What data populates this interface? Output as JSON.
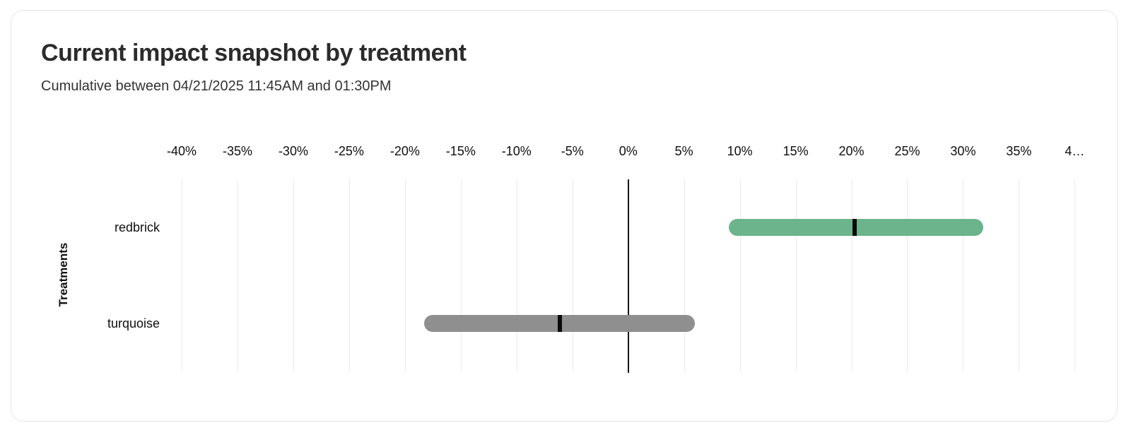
{
  "card": {
    "title": "Current impact snapshot by treatment",
    "subtitle": "Cumulative between 04/21/2025 11:45AM and 01:30PM"
  },
  "chart_data": {
    "type": "bar",
    "subtype": "horizontal-range-bar-with-mean-marker",
    "title": "Current impact snapshot by treatment",
    "subtitle": "Cumulative between 04/21/2025 11:45AM and 01:30PM",
    "xlabel": "",
    "ylabel": "Treatments",
    "xlim": [
      -40.7,
      40.8
    ],
    "grid": "vertical",
    "zero_line": true,
    "categories": [
      "redbrick",
      "turquoise"
    ],
    "series": [
      {
        "name": "redbrick",
        "min": 9.0,
        "max": 31.8,
        "value": 20.3,
        "color": "#6cb48c"
      },
      {
        "name": "turquoise",
        "min": -18.3,
        "max": 6.0,
        "value": -6.1,
        "color": "#8f8f8f"
      }
    ],
    "marker_color": "#0a0a0a",
    "gridline_color": "#e9e9e9",
    "x_ticks": [
      {
        "value": -40,
        "label": "-40%"
      },
      {
        "value": -35,
        "label": "-35%"
      },
      {
        "value": -30,
        "label": "-30%"
      },
      {
        "value": -25,
        "label": "-25%"
      },
      {
        "value": -20,
        "label": "-20%"
      },
      {
        "value": -15,
        "label": "-15%"
      },
      {
        "value": -10,
        "label": "-10%"
      },
      {
        "value": -5,
        "label": "-5%"
      },
      {
        "value": 0,
        "label": "0%"
      },
      {
        "value": 5,
        "label": "5%"
      },
      {
        "value": 10,
        "label": "10%"
      },
      {
        "value": 15,
        "label": "15%"
      },
      {
        "value": 20,
        "label": "20%"
      },
      {
        "value": 25,
        "label": "25%"
      },
      {
        "value": 30,
        "label": "30%"
      },
      {
        "value": 35,
        "label": "35%"
      },
      {
        "value": 40,
        "label": "4…"
      }
    ]
  }
}
